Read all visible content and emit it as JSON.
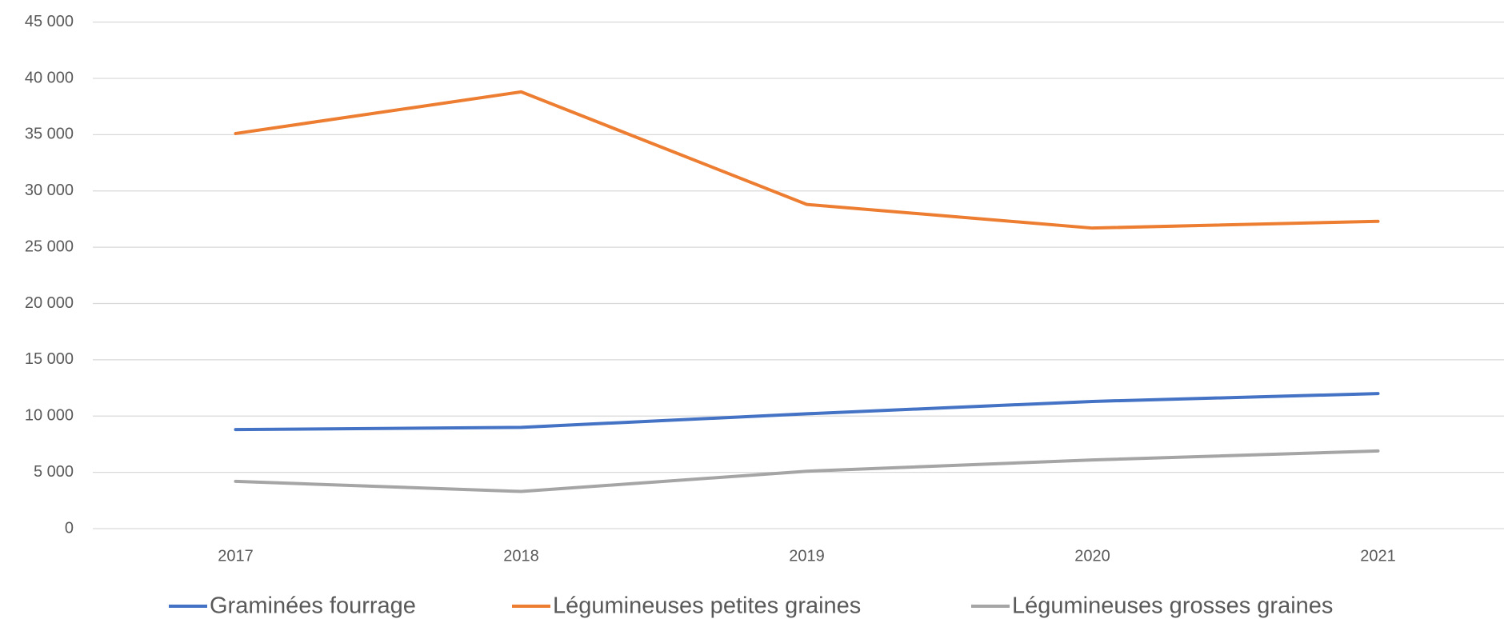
{
  "chart_data": {
    "type": "line",
    "categories": [
      "2017",
      "2018",
      "2019",
      "2020",
      "2021"
    ],
    "series": [
      {
        "name": "Graminées fourrage",
        "color": "#4472c4",
        "values": [
          8800,
          9000,
          10200,
          11300,
          12000
        ]
      },
      {
        "name": "Légumineuses petites graines",
        "color": "#ed7d31",
        "values": [
          35100,
          38800,
          28800,
          26700,
          27300
        ]
      },
      {
        "name": "Légumineuses grosses graines",
        "color": "#a5a5a5",
        "values": [
          4200,
          3300,
          5100,
          6100,
          6900
        ]
      }
    ],
    "ylim": [
      0,
      45000
    ],
    "yticks": [
      0,
      {
        "value": 5000,
        "label": "5 000"
      },
      {
        "value": 10000,
        "label": "10 000"
      },
      {
        "value": 15000,
        "label": "15 000"
      },
      {
        "value": 20000,
        "label": "20 000"
      },
      {
        "value": 25000,
        "label": "25 000"
      },
      {
        "value": 30000,
        "label": "30 000"
      },
      {
        "value": 35000,
        "label": "35 000"
      },
      {
        "value": 40000,
        "label": "40 000"
      },
      {
        "value": 45000,
        "label": "45 000"
      }
    ],
    "grid": true,
    "legend": "bottom"
  }
}
